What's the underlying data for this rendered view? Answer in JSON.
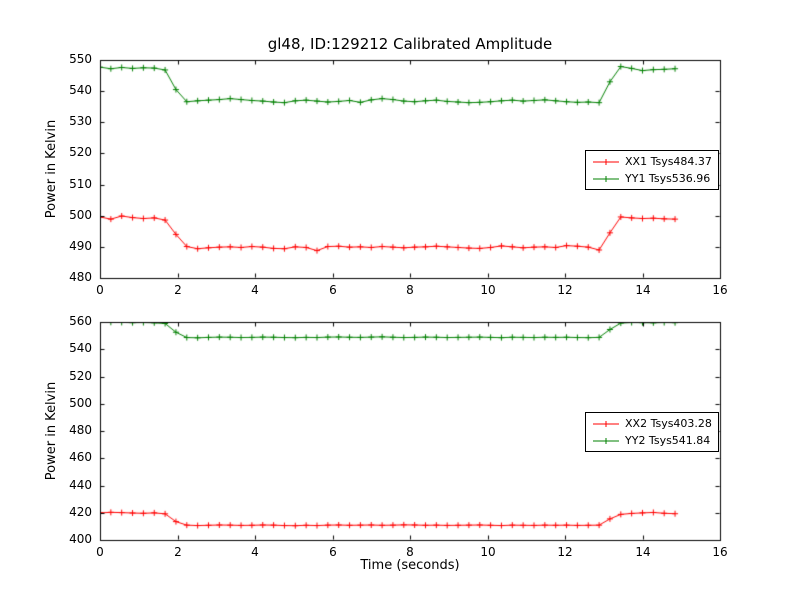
{
  "figure": {
    "title": "gl48, ID:129212 Calibrated Amplitude",
    "background": "#ffffff"
  },
  "colors": {
    "red": "#ff0000",
    "green": "#008000",
    "axis": "#000000"
  },
  "chart_data": [
    {
      "type": "line",
      "ylabel": "Power in Kelvin",
      "xlim": [
        0,
        16
      ],
      "ylim": [
        480,
        550
      ],
      "xticks": [
        0,
        2,
        4,
        6,
        8,
        10,
        12,
        14,
        16
      ],
      "yticks": [
        480,
        490,
        500,
        510,
        520,
        530,
        540,
        550
      ],
      "grid": false,
      "legend_position": "center right",
      "marker": "+",
      "x": [
        0,
        0.28,
        0.56,
        0.84,
        1.12,
        1.4,
        1.68,
        1.96,
        2.24,
        2.52,
        2.8,
        3.08,
        3.36,
        3.64,
        3.92,
        4.2,
        4.48,
        4.76,
        5.04,
        5.32,
        5.6,
        5.88,
        6.16,
        6.44,
        6.72,
        7.0,
        7.28,
        7.56,
        7.84,
        8.12,
        8.4,
        8.68,
        8.96,
        9.24,
        9.52,
        9.8,
        10.08,
        10.36,
        10.64,
        10.92,
        11.2,
        11.48,
        11.76,
        12.04,
        12.32,
        12.6,
        12.88,
        13.16,
        13.44,
        13.72,
        14.0,
        14.28,
        14.56,
        14.84
      ],
      "series": [
        {
          "name": "XX1 Tsys484.37",
          "color": "#ff0000",
          "values": [
            499.6,
            498.9,
            499.9,
            499.4,
            499.1,
            499.3,
            498.6,
            494.0,
            490.1,
            489.4,
            489.7,
            489.9,
            490.0,
            489.8,
            490.1,
            489.9,
            489.5,
            489.4,
            490.0,
            489.8,
            488.8,
            490.1,
            490.2,
            489.9,
            490.0,
            489.8,
            490.1,
            489.9,
            489.7,
            489.9,
            490.0,
            490.2,
            490.0,
            489.8,
            489.6,
            489.5,
            489.8,
            490.3,
            490.0,
            489.7,
            489.9,
            490.0,
            489.8,
            490.4,
            490.2,
            489.9,
            489.0,
            494.5,
            499.6,
            499.3,
            499.1,
            499.2,
            499.0,
            498.9
          ]
        },
        {
          "name": "YY1 Tsys536.96",
          "color": "#008000",
          "values": [
            547.7,
            547.2,
            547.6,
            547.3,
            547.5,
            547.4,
            546.8,
            540.5,
            536.6,
            536.9,
            537.1,
            537.3,
            537.6,
            537.3,
            537.0,
            536.8,
            536.5,
            536.3,
            536.9,
            537.1,
            536.8,
            536.5,
            536.7,
            537.0,
            536.4,
            537.2,
            537.6,
            537.3,
            536.8,
            536.6,
            536.9,
            537.1,
            536.7,
            536.5,
            536.3,
            536.4,
            536.6,
            536.9,
            537.1,
            536.8,
            537.0,
            537.2,
            536.9,
            536.6,
            536.4,
            536.5,
            536.3,
            543.0,
            547.9,
            547.3,
            546.6,
            546.9,
            547.0,
            547.2
          ]
        }
      ]
    },
    {
      "type": "line",
      "ylabel": "Power in Kelvin",
      "xlabel": "Time (seconds)",
      "xlim": [
        0,
        16
      ],
      "ylim": [
        400,
        560
      ],
      "xticks": [
        0,
        2,
        4,
        6,
        8,
        10,
        12,
        14,
        16
      ],
      "yticks": [
        400,
        420,
        440,
        460,
        480,
        500,
        520,
        540,
        560
      ],
      "grid": false,
      "legend_position": "center right",
      "marker": "+",
      "x": [
        0,
        0.28,
        0.56,
        0.84,
        1.12,
        1.4,
        1.68,
        1.96,
        2.24,
        2.52,
        2.8,
        3.08,
        3.36,
        3.64,
        3.92,
        4.2,
        4.48,
        4.76,
        5.04,
        5.32,
        5.6,
        5.88,
        6.16,
        6.44,
        6.72,
        7.0,
        7.28,
        7.56,
        7.84,
        8.12,
        8.4,
        8.68,
        8.96,
        9.24,
        9.52,
        9.8,
        10.08,
        10.36,
        10.64,
        10.92,
        11.2,
        11.48,
        11.76,
        12.04,
        12.32,
        12.6,
        12.88,
        13.16,
        13.44,
        13.72,
        14.0,
        14.28,
        14.56,
        14.84
      ],
      "series": [
        {
          "name": "XX2 Tsys403.28",
          "color": "#ff0000",
          "values": [
            419.9,
            420.3,
            420.1,
            419.8,
            419.6,
            419.9,
            419.2,
            413.5,
            410.9,
            410.6,
            410.8,
            411.0,
            410.9,
            410.7,
            410.8,
            411.0,
            410.9,
            410.6,
            410.5,
            410.8,
            410.6,
            410.9,
            411.0,
            410.8,
            410.9,
            411.0,
            410.8,
            410.9,
            411.1,
            411.0,
            410.8,
            410.9,
            410.7,
            410.8,
            410.9,
            411.0,
            410.8,
            410.6,
            410.9,
            410.8,
            410.7,
            410.9,
            410.8,
            410.9,
            410.7,
            410.8,
            410.9,
            415.5,
            418.8,
            419.5,
            419.9,
            420.2,
            419.6,
            419.3
          ]
        },
        {
          "name": "YY2 Tsys541.84",
          "color": "#008000",
          "values": [
            559.6,
            559.8,
            559.7,
            559.5,
            559.6,
            559.4,
            558.9,
            552.5,
            548.6,
            548.4,
            548.7,
            548.9,
            548.8,
            548.6,
            548.7,
            548.9,
            548.8,
            548.6,
            548.5,
            548.7,
            548.6,
            548.9,
            549.0,
            548.8,
            548.7,
            548.9,
            549.1,
            548.8,
            548.6,
            548.7,
            548.9,
            548.8,
            548.6,
            548.7,
            548.8,
            548.9,
            548.7,
            548.5,
            548.8,
            548.7,
            548.6,
            548.8,
            548.7,
            548.8,
            548.6,
            548.5,
            548.7,
            554.5,
            559.2,
            559.6,
            559.5,
            559.4,
            559.6,
            559.5
          ]
        }
      ]
    }
  ]
}
